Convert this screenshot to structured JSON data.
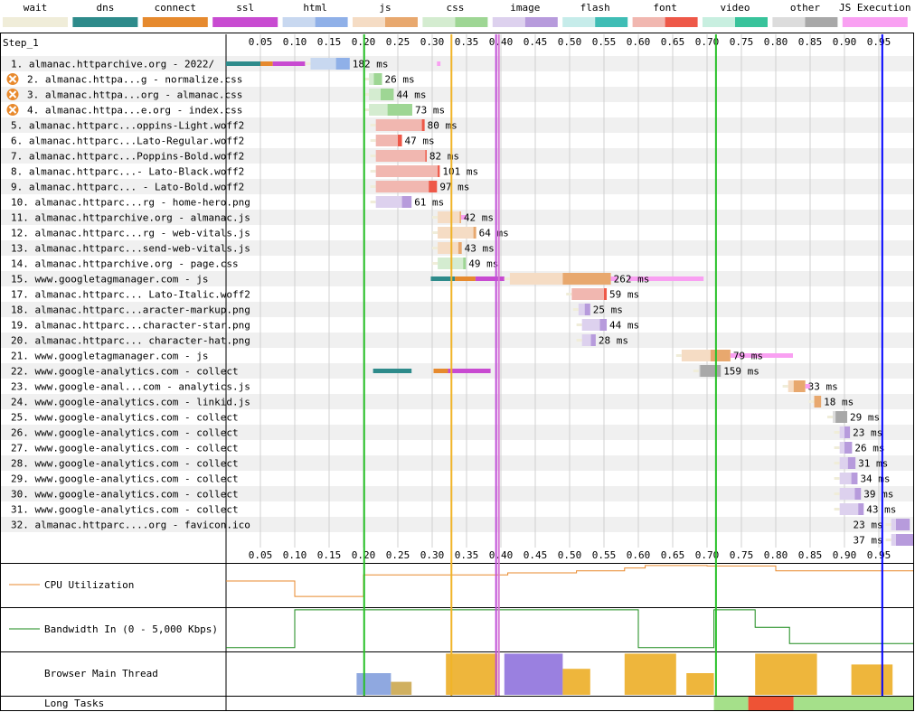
{
  "legend": [
    {
      "label": "wait",
      "light": "#f0edd9",
      "dark": "#f0edd9"
    },
    {
      "label": "dns",
      "light": "#2e8b8b",
      "dark": "#2e8b8b"
    },
    {
      "label": "connect",
      "light": "#e68a2e",
      "dark": "#e68a2e"
    },
    {
      "label": "ssl",
      "light": "#c84bd1",
      "dark": "#c84bd1"
    },
    {
      "label": "html",
      "light": "#c8d8f0",
      "dark": "#8fb0e8"
    },
    {
      "label": "js",
      "light": "#f5dcc4",
      "dark": "#e8a86e"
    },
    {
      "label": "css",
      "light": "#d4ecd0",
      "dark": "#9ed694"
    },
    {
      "label": "image",
      "light": "#ddd1ee",
      "dark": "#b79bdc"
    },
    {
      "label": "flash",
      "light": "#c6ecea",
      "dark": "#3fbdb5"
    },
    {
      "label": "font",
      "light": "#f1b7b0",
      "dark": "#ee5848"
    },
    {
      "label": "video",
      "light": "#c8efe0",
      "dark": "#38c39b"
    },
    {
      "label": "other",
      "light": "#dcdcdc",
      "dark": "#a8a8a8"
    },
    {
      "label": "JS Execution",
      "light": "#f9a0f2",
      "dark": "#f9a0f2"
    }
  ],
  "step_label": "Step_1",
  "cpu_label": "CPU Utilization",
  "bandwidth_label": "Bandwidth In (0 - 5,000 Kbps)",
  "main_thread_label": "Browser Main Thread",
  "long_tasks_label": "Long Tasks",
  "chart_data": {
    "type": "waterfall",
    "x_unit": "seconds",
    "x_range": [
      0,
      1.0
    ],
    "ticks": [
      0.05,
      0.1,
      0.15,
      0.2,
      0.25,
      0.3,
      0.35,
      0.4,
      0.45,
      0.5,
      0.55,
      0.6,
      0.65,
      0.7,
      0.75,
      0.8,
      0.85,
      0.9,
      0.95
    ],
    "tick_labels": [
      "0.05",
      "0.10",
      "0.15",
      "0.20",
      "0.25",
      "0.30",
      "0.35",
      "0.40",
      "0.45",
      "0.50",
      "0.55",
      "0.60",
      "0.65",
      "0.70",
      "0.75",
      "0.80",
      "0.85",
      "0.90",
      "0.95"
    ],
    "markers": [
      {
        "t": 0.201,
        "color": "#28c028"
      },
      {
        "t": 0.328,
        "color": "#f0b428"
      },
      {
        "t": 0.393,
        "color": "#c050d8"
      },
      {
        "t": 0.397,
        "color": "#d67ad6"
      },
      {
        "t": 0.713,
        "color": "#28c028"
      },
      {
        "t": 0.955,
        "color": "#0000ff"
      }
    ],
    "requests": [
      {
        "n": 1,
        "label": "almanac.httparchive.org - 2022/",
        "blocked": false,
        "type": "html",
        "dns": [
          0.0,
          0.05
        ],
        "connect": [
          0.05,
          0.068
        ],
        "ssl": [
          0.068,
          0.115
        ],
        "wait": [
          0.115,
          0.16
        ],
        "recv": [
          0.16,
          0.18
        ],
        "dur": "182 ms",
        "js_exec": [
          [
            0.307,
            0.312
          ]
        ]
      },
      {
        "n": 2,
        "label": "almanac.httpa...g - normalize.css",
        "blocked": true,
        "type": "css",
        "wait": [
          0.2,
          0.215
        ],
        "recv": [
          0.215,
          0.227
        ],
        "dur": "26 ms"
      },
      {
        "n": 3,
        "label": "almanac.httpa...org - almanac.css",
        "blocked": true,
        "type": "css",
        "wait": [
          0.2,
          0.225
        ],
        "recv": [
          0.225,
          0.244
        ],
        "dur": "44 ms"
      },
      {
        "n": 4,
        "label": "almanac.httpa...e.org - index.css",
        "blocked": true,
        "type": "css",
        "wait": [
          0.2,
          0.235
        ],
        "recv": [
          0.235,
          0.271
        ],
        "dur": "73 ms"
      },
      {
        "n": 5,
        "label": "almanac.httparc...oppins-Light.woff2",
        "blocked": false,
        "type": "font",
        "wait": [
          0.21,
          0.285
        ],
        "recv": [
          0.285,
          0.289
        ],
        "dur": "80 ms"
      },
      {
        "n": 6,
        "label": "almanac.httparc...Lato-Regular.woff2",
        "blocked": false,
        "type": "font",
        "wait": [
          0.21,
          0.25
        ],
        "recv": [
          0.25,
          0.256
        ],
        "dur": "47 ms"
      },
      {
        "n": 7,
        "label": "almanac.httparc...Poppins-Bold.woff2",
        "blocked": false,
        "type": "font",
        "wait": [
          0.21,
          0.29
        ],
        "recv": [
          0.29,
          0.292
        ],
        "dur": "82 ms"
      },
      {
        "n": 8,
        "label": "almanac.httparc...- Lato-Black.woff2",
        "blocked": false,
        "type": "font",
        "wait": [
          0.21,
          0.308
        ],
        "recv": [
          0.308,
          0.311
        ],
        "dur": "101 ms"
      },
      {
        "n": 9,
        "label": "almanac.httparc... - Lato-Bold.woff2",
        "blocked": false,
        "type": "font",
        "wait": [
          0.21,
          0.295
        ],
        "recv": [
          0.295,
          0.307
        ],
        "dur": "97 ms"
      },
      {
        "n": 10,
        "label": "almanac.httparc...rg - home-hero.png",
        "blocked": false,
        "type": "image",
        "wait": [
          0.21,
          0.256
        ],
        "recv": [
          0.256,
          0.27
        ],
        "dur": "61 ms"
      },
      {
        "n": 11,
        "label": "almanac.httparchive.org - almanac.js",
        "blocked": false,
        "type": "js",
        "wait": [
          0.3,
          0.34
        ],
        "recv": [
          0.34,
          0.342
        ],
        "dur": "42 ms",
        "js_exec": [
          [
            0.342,
            0.35
          ]
        ]
      },
      {
        "n": 12,
        "label": "almanac.httparc...rg - web-vitals.js",
        "blocked": false,
        "type": "js",
        "wait": [
          0.3,
          0.36
        ],
        "recv": [
          0.36,
          0.364
        ],
        "dur": "64 ms"
      },
      {
        "n": 13,
        "label": "almanac.httparc...send-web-vitals.js",
        "blocked": false,
        "type": "js",
        "wait": [
          0.3,
          0.338
        ],
        "recv": [
          0.338,
          0.343
        ],
        "dur": "43 ms"
      },
      {
        "n": 14,
        "label": "almanac.httparchive.org - page.css",
        "blocked": false,
        "type": "css",
        "wait": [
          0.3,
          0.345
        ],
        "recv": [
          0.345,
          0.349
        ],
        "dur": "49 ms"
      },
      {
        "n": 15,
        "label": "www.googletagmanager.com - js",
        "blocked": false,
        "type": "js",
        "dns": [
          0.298,
          0.333
        ],
        "connect": [
          0.333,
          0.363
        ],
        "ssl": [
          0.363,
          0.405
        ],
        "wait": [
          0.405,
          0.49
        ],
        "recv": [
          0.49,
          0.56
        ],
        "dur": "262 ms",
        "js_exec": [
          [
            0.56,
            0.57
          ],
          [
            0.585,
            0.695
          ]
        ]
      },
      {
        "n": 17,
        "label": "almanac.httparc... Lato-Italic.woff2",
        "blocked": false,
        "type": "font",
        "wait": [
          0.495,
          0.55
        ],
        "recv": [
          0.55,
          0.554
        ],
        "dur": "59 ms"
      },
      {
        "n": 18,
        "label": "almanac.httparc...aracter-markup.png",
        "blocked": false,
        "type": "image",
        "wait": [
          0.505,
          0.522
        ],
        "recv": [
          0.522,
          0.53
        ],
        "dur": "25 ms"
      },
      {
        "n": 19,
        "label": "almanac.httparc...character-star.png",
        "blocked": false,
        "type": "image",
        "wait": [
          0.51,
          0.544
        ],
        "recv": [
          0.544,
          0.554
        ],
        "dur": "44 ms"
      },
      {
        "n": 20,
        "label": "almanac.httparc... character-hat.png",
        "blocked": false,
        "type": "image",
        "wait": [
          0.51,
          0.531
        ],
        "recv": [
          0.531,
          0.538
        ],
        "dur": "28 ms"
      },
      {
        "n": 21,
        "label": "www.googletagmanager.com - js",
        "blocked": false,
        "type": "js",
        "wait": [
          0.655,
          0.705
        ],
        "recv": [
          0.705,
          0.734
        ],
        "dur": "79 ms",
        "js_exec": [
          [
            0.734,
            0.825
          ]
        ]
      },
      {
        "n": 22,
        "label": "www.google-analytics.com - collect",
        "blocked": false,
        "type": "other",
        "dns": [
          0.214,
          0.27
        ],
        "connect": [
          0.302,
          0.323
        ],
        "ssl": [
          0.323,
          0.385
        ],
        "wait": [
          0.68,
          0.69
        ],
        "recv": [
          0.69,
          0.72
        ],
        "dur": "159 ms"
      },
      {
        "n": 23,
        "label": "www.google-anal...com - analytics.js",
        "blocked": false,
        "type": "js",
        "wait": [
          0.81,
          0.826
        ],
        "recv": [
          0.826,
          0.843
        ],
        "dur": "33 ms",
        "js_exec": [
          [
            0.843,
            0.85
          ]
        ]
      },
      {
        "n": 24,
        "label": "www.google-analytics.com - linkid.js",
        "blocked": false,
        "type": "js",
        "wait": [
          0.848,
          0.856
        ],
        "recv": [
          0.856,
          0.866
        ],
        "dur": "18 ms"
      },
      {
        "n": 25,
        "label": "www.google-analytics.com - collect",
        "blocked": false,
        "type": "other",
        "wait": [
          0.875,
          0.887
        ],
        "recv": [
          0.887,
          0.904
        ],
        "dur": "29 ms"
      },
      {
        "n": 26,
        "label": "www.google-analytics.com - collect",
        "blocked": false,
        "type": "image",
        "wait": [
          0.885,
          0.9
        ],
        "recv": [
          0.9,
          0.908
        ],
        "dur": "23 ms"
      },
      {
        "n": 27,
        "label": "www.google-analytics.com - collect",
        "blocked": false,
        "type": "image",
        "wait": [
          0.885,
          0.9
        ],
        "recv": [
          0.9,
          0.911
        ],
        "dur": "26 ms"
      },
      {
        "n": 28,
        "label": "www.google-analytics.com - collect",
        "blocked": false,
        "type": "image",
        "wait": [
          0.885,
          0.905
        ],
        "recv": [
          0.905,
          0.916
        ],
        "dur": "31 ms"
      },
      {
        "n": 29,
        "label": "www.google-analytics.com - collect",
        "blocked": false,
        "type": "image",
        "wait": [
          0.885,
          0.91
        ],
        "recv": [
          0.91,
          0.919
        ],
        "dur": "34 ms"
      },
      {
        "n": 30,
        "label": "www.google-analytics.com - collect",
        "blocked": false,
        "type": "image",
        "wait": [
          0.885,
          0.915
        ],
        "recv": [
          0.915,
          0.924
        ],
        "dur": "39 ms"
      },
      {
        "n": 31,
        "label": "www.google-analytics.com - collect",
        "blocked": false,
        "type": "image",
        "wait": [
          0.885,
          0.92
        ],
        "recv": [
          0.92,
          0.928
        ],
        "dur": "43 ms"
      },
      {
        "n": 32,
        "label": "almanac.httparc....org - favicon.ico",
        "blocked": false,
        "type": "image",
        "wait": [
          0.96,
          0.975
        ],
        "recv": [
          0.975,
          0.995
        ],
        "dur": "23 ms",
        "dur_left": true
      },
      {
        "n": 33,
        "label": "",
        "blocked": false,
        "type": "image",
        "wait": [
          0.96,
          0.975
        ],
        "recv": [
          0.975,
          1.0
        ],
        "dur": "37 ms",
        "dur_left": true
      }
    ],
    "cpu": [
      [
        0,
        0.6
      ],
      [
        0.1,
        0.6
      ],
      [
        0.1,
        0.22
      ],
      [
        0.2,
        0.22
      ],
      [
        0.2,
        0.75
      ],
      [
        0.41,
        0.75
      ],
      [
        0.41,
        0.8
      ],
      [
        0.51,
        0.8
      ],
      [
        0.51,
        0.85
      ],
      [
        0.58,
        0.85
      ],
      [
        0.58,
        0.92
      ],
      [
        0.61,
        0.92
      ],
      [
        0.61,
        0.98
      ],
      [
        0.7,
        0.98
      ],
      [
        0.7,
        0.97
      ],
      [
        0.8,
        0.97
      ],
      [
        0.8,
        0.85
      ],
      [
        1.0,
        0.85
      ]
    ],
    "bandwidth": [
      [
        0,
        0.05
      ],
      [
        0.1,
        0.05
      ],
      [
        0.1,
        0.98
      ],
      [
        0.6,
        0.98
      ],
      [
        0.6,
        0.05
      ],
      [
        0.71,
        0.05
      ],
      [
        0.71,
        0.98
      ],
      [
        0.77,
        0.98
      ],
      [
        0.77,
        0.55
      ],
      [
        0.82,
        0.55
      ],
      [
        0.82,
        0.15
      ],
      [
        1.0,
        0.15
      ]
    ],
    "main_thread": [
      {
        "start": 0.19,
        "end": 0.24,
        "color": "#8fa8e0",
        "level": 0.5
      },
      {
        "start": 0.24,
        "end": 0.27,
        "color": "#d0b060",
        "level": 0.3
      },
      {
        "start": 0.32,
        "end": 0.395,
        "color": "#eeb63c",
        "level": 0.95
      },
      {
        "start": 0.405,
        "end": 0.49,
        "color": "#9a80e0",
        "level": 0.95
      },
      {
        "start": 0.49,
        "end": 0.53,
        "color": "#eeb63c",
        "level": 0.6
      },
      {
        "start": 0.58,
        "end": 0.655,
        "color": "#eeb63c",
        "level": 0.95
      },
      {
        "start": 0.67,
        "end": 0.71,
        "color": "#eeb63c",
        "level": 0.5
      },
      {
        "start": 0.77,
        "end": 0.86,
        "color": "#eeb63c",
        "level": 0.95
      },
      {
        "start": 0.91,
        "end": 0.97,
        "color": "#eeb63c",
        "level": 0.7
      }
    ],
    "long_tasks": [
      {
        "start": 0.71,
        "end": 0.76,
        "color": "#a5e08a"
      },
      {
        "start": 0.76,
        "end": 0.826,
        "color": "#ee5335"
      },
      {
        "start": 0.826,
        "end": 1.0,
        "color": "#a5e08a"
      }
    ]
  }
}
